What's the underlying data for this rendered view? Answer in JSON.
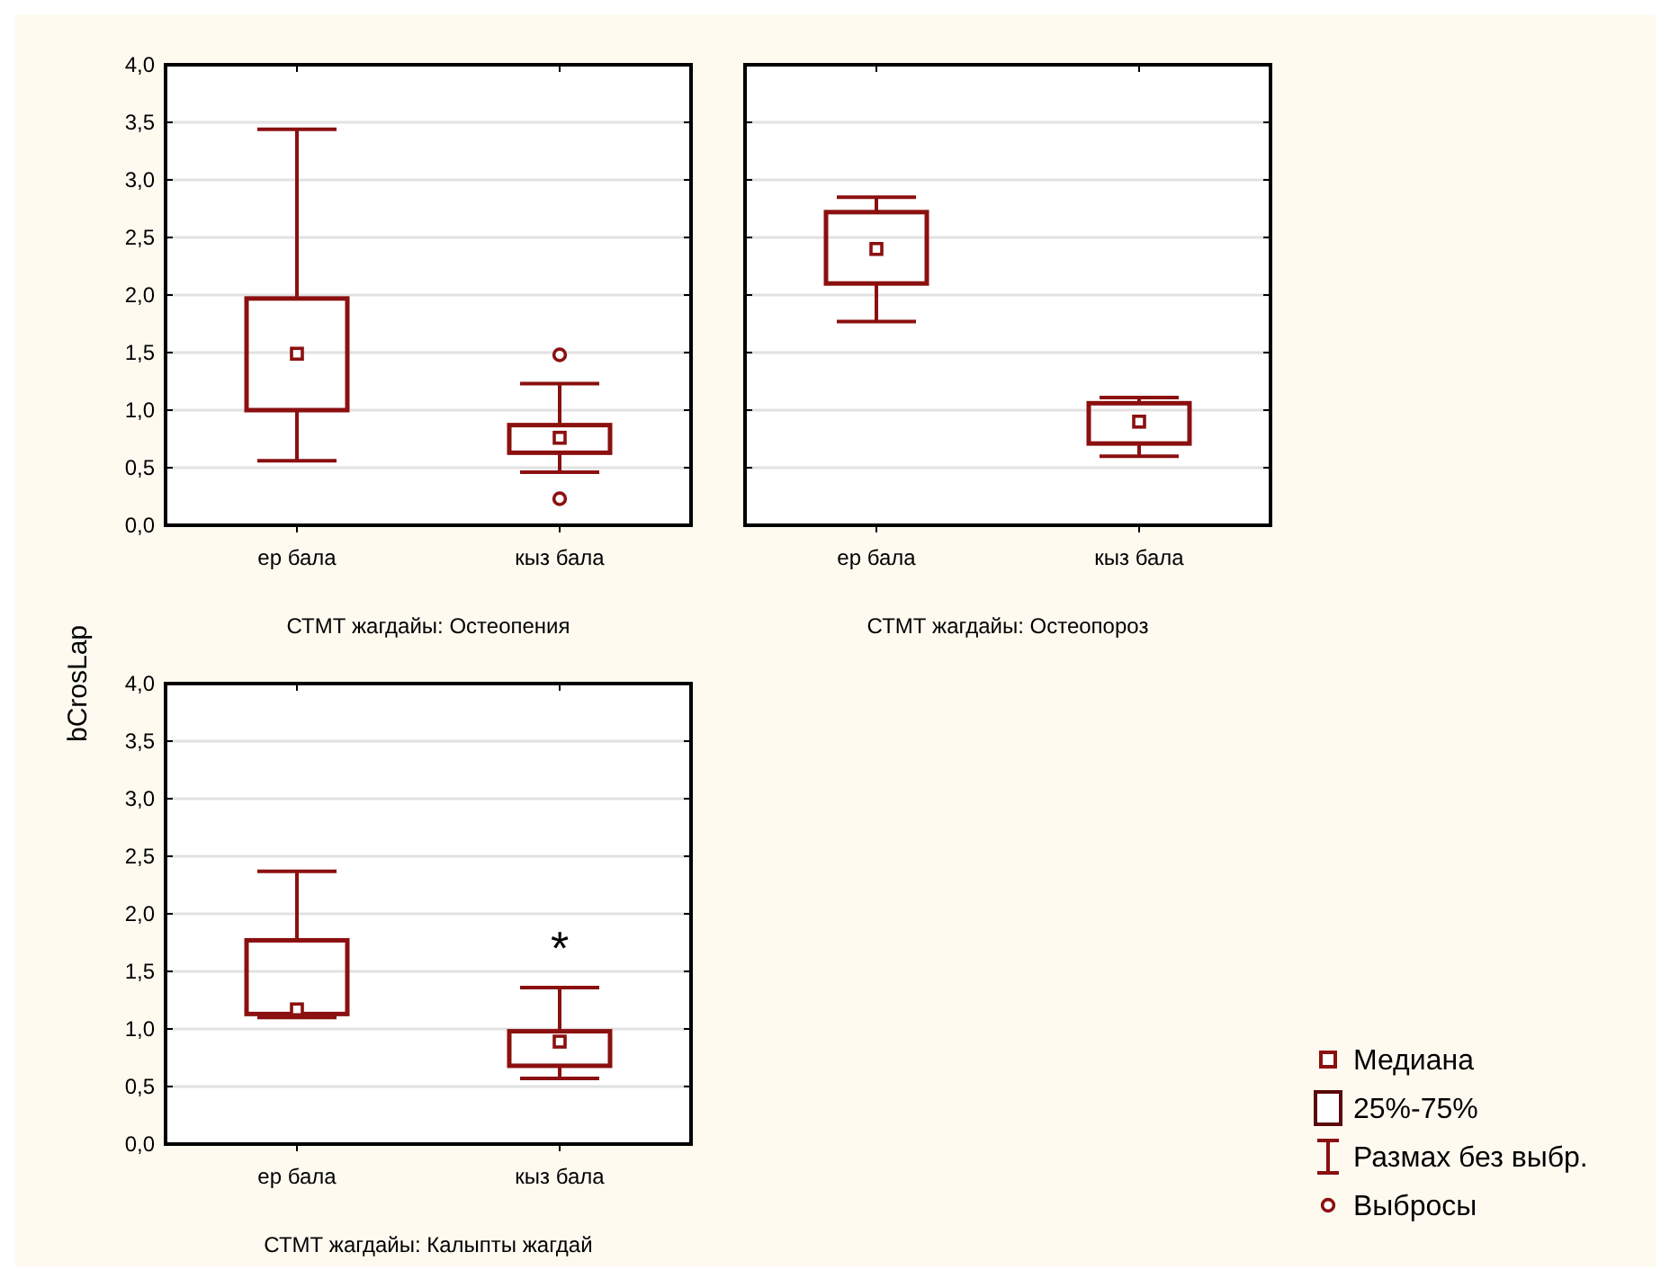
{
  "chart_data": [
    {
      "type": "box",
      "xlabel": "СТМТ жагдайы: Остеопения",
      "ylabel": "bCrosLap",
      "categories": [
        "ер бала",
        "кыз бала"
      ],
      "ylim": [
        0,
        4
      ],
      "yticks": [
        {
          "value": 0,
          "label": "0,0"
        },
        {
          "value": 0.5,
          "label": "0,5"
        },
        {
          "value": 1,
          "label": "1,0"
        },
        {
          "value": 1.5,
          "label": "1,5"
        },
        {
          "value": 2,
          "label": "2,0"
        },
        {
          "value": 2.5,
          "label": "2,5"
        },
        {
          "value": 3,
          "label": "3,0"
        },
        {
          "value": 3.5,
          "label": "3,5"
        },
        {
          "value": 4,
          "label": "4,0"
        }
      ],
      "grid": "y",
      "series": [
        {
          "color": "#8b1010",
          "boxes": [
            {
              "low": 0.56,
              "q1": 1.0,
              "median": 1.49,
              "q3": 1.97,
              "high": 3.44
            },
            {
              "low": 0.46,
              "q1": 0.63,
              "median": 0.76,
              "q3": 0.87,
              "high": 1.23,
              "outliers": [
                1.48,
                0.23
              ]
            }
          ]
        }
      ]
    },
    {
      "type": "box",
      "xlabel": "СТМТ жагдайы: Остеопороз",
      "categories": [
        "ер бала",
        "кыз бала"
      ],
      "ylim": [
        0,
        4
      ],
      "yticks": [
        {
          "value": 0,
          "label": null
        },
        {
          "value": 0.5,
          "label": null
        },
        {
          "value": 1,
          "label": null
        },
        {
          "value": 1.5,
          "label": null
        },
        {
          "value": 2,
          "label": null
        },
        {
          "value": 2.5,
          "label": null
        },
        {
          "value": 3,
          "label": null
        },
        {
          "value": 3.5,
          "label": null
        },
        {
          "value": 4,
          "label": null
        }
      ],
      "grid": "y",
      "tick_labels": "x",
      "series": [
        {
          "color": "#8b1010",
          "boxes": [
            {
              "low": 1.77,
              "q1": 2.1,
              "median": 2.4,
              "q3": 2.72,
              "high": 2.85
            },
            {
              "low": 0.6,
              "q1": 0.71,
              "median": 0.9,
              "q3": 1.06,
              "high": 1.11
            }
          ]
        }
      ]
    },
    {
      "type": "box",
      "xlabel": "СТМТ жагдайы: Калыпты жагдай",
      "categories": [
        "ер бала",
        "кыз бала"
      ],
      "ylim": [
        0,
        4
      ],
      "yticks": [
        {
          "value": 0,
          "label": "0,0"
        },
        {
          "value": 0.5,
          "label": "0,5"
        },
        {
          "value": 1,
          "label": "1,0"
        },
        {
          "value": 1.5,
          "label": "1,5"
        },
        {
          "value": 2,
          "label": "2,0"
        },
        {
          "value": 2.5,
          "label": "2,5"
        },
        {
          "value": 3,
          "label": "3,0"
        },
        {
          "value": 3.5,
          "label": "3,5"
        },
        {
          "value": 4,
          "label": "4,0"
        }
      ],
      "grid": "y",
      "annotations": [
        "*",
        "Медиана",
        "25%-75%",
        "Размах без выбр.",
        "Выбросы"
      ],
      "series": [
        {
          "color": "#8b1010",
          "boxes": [
            {
              "low": 1.1,
              "q1": 1.13,
              "median": 1.17,
              "q3": 1.77,
              "high": 2.37
            },
            {
              "low": 0.57,
              "q1": 0.68,
              "median": 0.89,
              "q3": 0.98,
              "high": 1.36
            }
          ]
        }
      ]
    }
  ]
}
